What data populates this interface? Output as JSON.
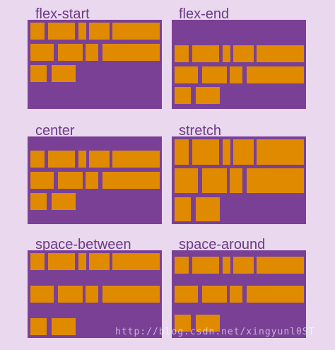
{
  "panels": [
    {
      "id": "flex-start",
      "label": "flex-start"
    },
    {
      "id": "flex-end",
      "label": "flex-end"
    },
    {
      "id": "center",
      "label": "center"
    },
    {
      "id": "stretch",
      "label": "stretch"
    },
    {
      "id": "space-between",
      "label": "space-between"
    },
    {
      "id": "space-around",
      "label": "space-around"
    }
  ],
  "watermark": "http://blog.csdn.net/xingyunl0ST",
  "colors": {
    "background": "#ead8ee",
    "container": "#7a4096",
    "item": "#e08a00",
    "label": "#6b3a86"
  }
}
